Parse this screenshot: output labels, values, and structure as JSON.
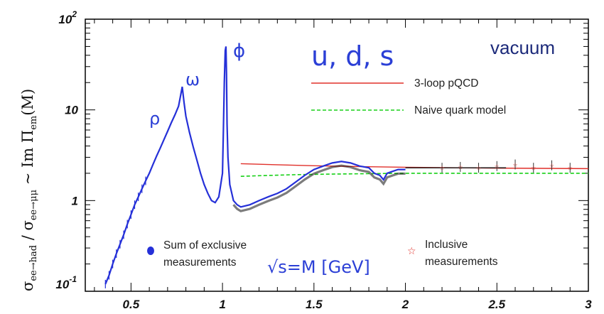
{
  "chart_data": {
    "type": "line",
    "title": "",
    "xlabel": "√s=M [GeV]",
    "ylabel": "σee→had / σee→μμ ~ Im Πem(M)",
    "ylabel_parts": {
      "sigma1": "σ",
      "sub1": "ee→had",
      "slash": " / ",
      "sigma2": "σ",
      "sub2": "ee→μμ",
      "tilde": " ~ Im ",
      "pi": "Π",
      "sub3": "em",
      "arg": "(M)"
    },
    "x_scale": "linear",
    "y_scale": "log",
    "xlim": [
      0.25,
      3.0
    ],
    "ylim": [
      0.1,
      100
    ],
    "x_ticks": [
      "0.5",
      "1",
      "1.5",
      "2",
      "2.5",
      "3"
    ],
    "y_ticks": [
      {
        "base": "10",
        "exp": "-1"
      },
      {
        "base": "1",
        "exp": ""
      },
      {
        "base": "10",
        "exp": ""
      },
      {
        "base": "10",
        "exp": "2"
      }
    ],
    "annotations": {
      "rho": "ρ",
      "omega": "ω",
      "phi": "ϕ",
      "flavors": "u, d, s",
      "vacuum": "vacuum"
    },
    "legend": {
      "qcd": "3-loop pQCD",
      "naive": "Naive quark model",
      "exclusive_line1": "Sum of exclusive",
      "exclusive_line2": "measurements",
      "inclusive_line1": "Inclusive",
      "inclusive_line2": "measurements"
    },
    "colors": {
      "data": "#2530d8",
      "black_data": "#111111",
      "qcd": "#e0302a",
      "naive": "#18d018",
      "labels": "#2b3fd6",
      "inclusive_marker": "#e0302a"
    },
    "series": [
      {
        "name": "Sum of exclusive measurements",
        "x": [
          0.36,
          0.38,
          0.4,
          0.42,
          0.44,
          0.46,
          0.48,
          0.5,
          0.52,
          0.54,
          0.56,
          0.58,
          0.6,
          0.62,
          0.64,
          0.66,
          0.68,
          0.7,
          0.72,
          0.74,
          0.76,
          0.77,
          0.78,
          0.79,
          0.8,
          0.82,
          0.84,
          0.86,
          0.88,
          0.9,
          0.92,
          0.94,
          0.96,
          0.98,
          1.0,
          1.005,
          1.01,
          1.015,
          1.019,
          1.022,
          1.025,
          1.03,
          1.04,
          1.06,
          1.08,
          1.1,
          1.15,
          1.2,
          1.25,
          1.3,
          1.35,
          1.4,
          1.45,
          1.5,
          1.55,
          1.6,
          1.65,
          1.7,
          1.75,
          1.8,
          1.83,
          1.86,
          1.88,
          1.9,
          1.93,
          1.96,
          2.0
        ],
        "y": [
          0.12,
          0.15,
          0.2,
          0.26,
          0.33,
          0.42,
          0.55,
          0.7,
          0.9,
          1.1,
          1.35,
          1.65,
          2.0,
          2.5,
          3.1,
          3.8,
          4.7,
          5.8,
          7.2,
          8.8,
          11,
          14,
          18,
          12,
          8.5,
          5.6,
          3.9,
          2.8,
          2.0,
          1.5,
          1.2,
          1.0,
          0.95,
          1.1,
          2.0,
          6,
          20,
          45,
          50,
          25,
          7,
          3.0,
          1.5,
          1.0,
          0.9,
          0.85,
          0.9,
          1.0,
          1.1,
          1.2,
          1.35,
          1.6,
          1.9,
          2.2,
          2.4,
          2.6,
          2.7,
          2.6,
          2.4,
          2.3,
          2.0,
          1.9,
          1.7,
          2.0,
          2.1,
          2.2,
          2.2
        ]
      },
      {
        "name": "3-loop pQCD",
        "x": [
          1.1,
          1.3,
          1.5,
          1.8,
          2.0,
          2.5,
          3.0
        ],
        "y": [
          2.55,
          2.48,
          2.42,
          2.36,
          2.33,
          2.28,
          2.25
        ]
      },
      {
        "name": "Naive quark model",
        "x": [
          1.1,
          1.2,
          1.4,
          1.6,
          1.8,
          2.0,
          2.5,
          3.0
        ],
        "y": [
          1.85,
          1.88,
          1.93,
          1.96,
          1.98,
          2.0,
          2.0,
          2.0
        ]
      },
      {
        "name": "Inclusive measurements",
        "x": [
          2.2,
          2.3,
          2.4,
          2.5,
          2.6,
          2.7,
          2.8,
          2.9
        ],
        "y": [
          2.3,
          2.35,
          2.3,
          2.4,
          2.5,
          2.3,
          2.45,
          2.3
        ]
      }
    ]
  }
}
